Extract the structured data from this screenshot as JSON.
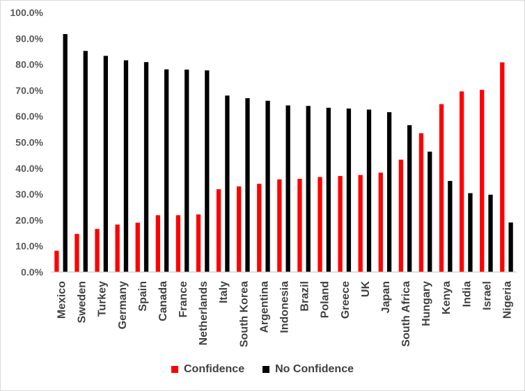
{
  "chart_data": {
    "type": "bar",
    "categories": [
      "Mexico",
      "Sweden",
      "Turkey",
      "Germany",
      "Spain",
      "Canada",
      "France",
      "Netherlands",
      "Italy",
      "South Korea",
      "Argentina",
      "Indonesia",
      "Brazil",
      "Poland",
      "Greece",
      "UK",
      "Japan",
      "South Africa",
      "Hungary",
      "Kenya",
      "India",
      "Israel",
      "Nigeria"
    ],
    "series": [
      {
        "name": "Confidence",
        "color": "#ff0000",
        "values": [
          8.2,
          14.7,
          16.6,
          18.3,
          19.0,
          21.9,
          21.9,
          22.2,
          31.9,
          33.0,
          34.0,
          35.7,
          35.9,
          36.6,
          37.0,
          37.4,
          38.3,
          43.3,
          53.5,
          64.7,
          69.6,
          70.2,
          80.8
        ]
      },
      {
        "name": "No Confidence",
        "color": "#000000",
        "values": [
          91.7,
          85.2,
          83.3,
          81.6,
          80.9,
          78.1,
          78.0,
          77.7,
          68.0,
          67.0,
          66.0,
          64.2,
          64.0,
          63.3,
          63.0,
          62.6,
          61.6,
          56.6,
          46.4,
          35.1,
          30.4,
          29.8,
          19.1
        ]
      }
    ],
    "y_ticks": [
      "0.0%",
      "10.0%",
      "20.0%",
      "30.0%",
      "40.0%",
      "50.0%",
      "60.0%",
      "70.0%",
      "80.0%",
      "90.0%",
      "100.0%"
    ],
    "ylim": [
      0,
      100
    ],
    "grid": false,
    "legend": "bottom"
  }
}
